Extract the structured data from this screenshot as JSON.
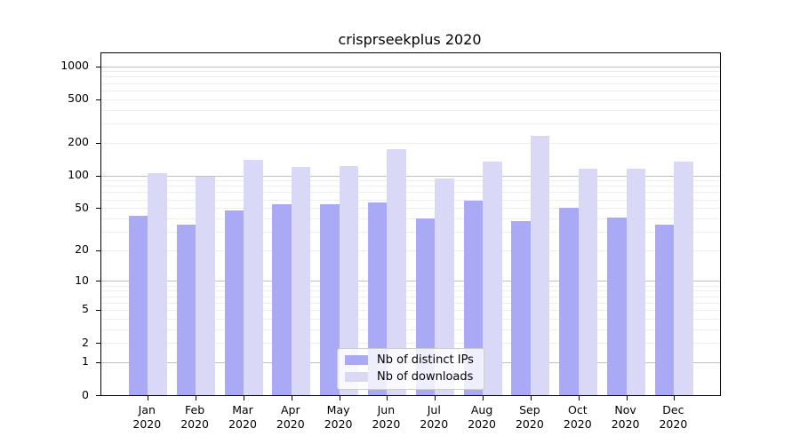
{
  "chart_data": {
    "type": "bar",
    "title": "crisprseekplus 2020",
    "categories": [
      "Jan 2020",
      "Feb 2020",
      "Mar 2020",
      "Apr 2020",
      "May 2020",
      "Jun 2020",
      "Jul 2020",
      "Aug 2020",
      "Sep 2020",
      "Oct 2020",
      "Nov 2020",
      "Dec 2020"
    ],
    "series": [
      {
        "name": "Nb of distinct IPs",
        "color": "#a9a9f5",
        "values": [
          42,
          35,
          47,
          54,
          54,
          56,
          40,
          58,
          38,
          50,
          41,
          35
        ]
      },
      {
        "name": "Nb of downloads",
        "color": "#d9d9f7",
        "values": [
          105,
          97,
          140,
          119,
          123,
          175,
          93,
          133,
          232,
          116,
          116,
          133
        ]
      }
    ],
    "yscale": "log10(1+x)",
    "yticks": [
      0,
      1,
      2,
      5,
      10,
      20,
      50,
      100,
      200,
      500,
      1000
    ],
    "major_gridlines": [
      1,
      10,
      100,
      1000
    ],
    "ylim_top": 1310,
    "grid": "on",
    "legend_position": "lower center"
  },
  "colors": {
    "major_grid": "#bfbfbf",
    "minor_grid": "#eeeeee",
    "axis": "#000000",
    "legend_border": "#cccccc",
    "background": "#ffffff"
  }
}
